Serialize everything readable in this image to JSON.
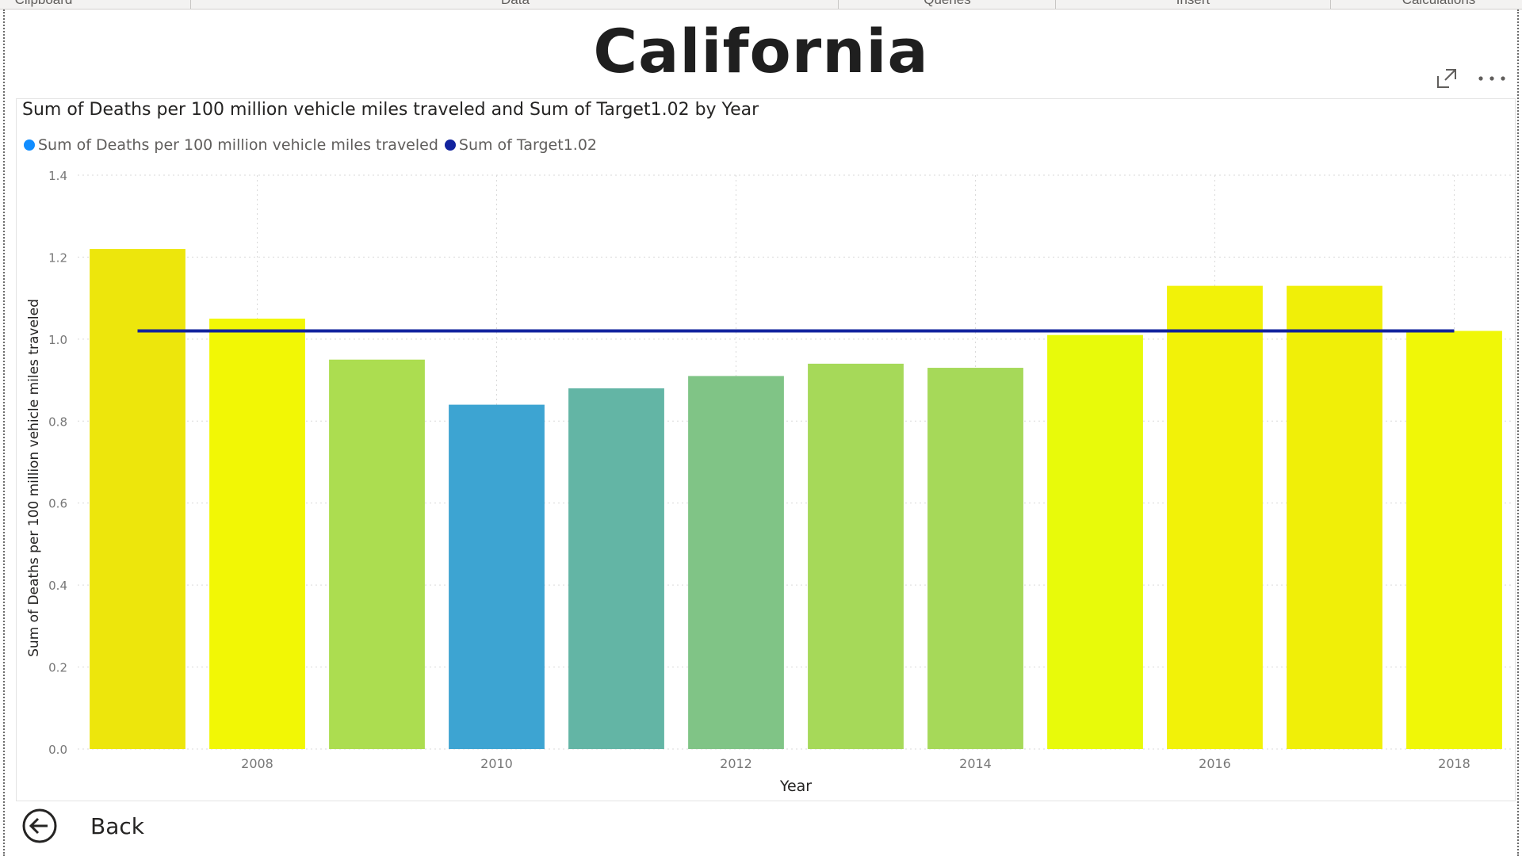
{
  "ribbon": {
    "groups": [
      "Clipboard",
      "Data",
      "Queries",
      "Insert",
      "Calculations"
    ]
  },
  "page": {
    "title": "California",
    "back_label": "Back"
  },
  "visual": {
    "focus_icon": "focus-mode-icon",
    "more_icon": "more-options-icon"
  },
  "chart_data": {
    "type": "bar",
    "title": "Sum of Deaths per 100 million vehicle miles traveled and Sum of Target1.02 by Year",
    "xlabel": "Year",
    "ylabel": "Sum of Deaths per 100 million vehicle miles traveled",
    "ylim": [
      0,
      1.4
    ],
    "yticks": [
      "0.0",
      "0.2",
      "0.4",
      "0.6",
      "0.8",
      "1.0",
      "1.2",
      "1.4"
    ],
    "categories": [
      "2007",
      "2008",
      "2009",
      "2010",
      "2011",
      "2012",
      "2013",
      "2014",
      "2015",
      "2016",
      "2017",
      "2018"
    ],
    "xtick_labels": [
      "",
      "2008",
      "",
      "2010",
      "",
      "2012",
      "",
      "2014",
      "",
      "2016",
      "",
      "2018"
    ],
    "series": [
      {
        "name": "Sum of Deaths per 100 million vehicle miles traveled",
        "type": "bar",
        "legend_color": "#118dff",
        "values": [
          1.22,
          1.05,
          0.95,
          0.84,
          0.88,
          0.91,
          0.94,
          0.93,
          1.01,
          1.13,
          1.13,
          1.02
        ],
        "bar_colors": [
          "#ede60c",
          "#f2f705",
          "#acdd50",
          "#3da4d2",
          "#63b5a5",
          "#80c486",
          "#a6d959",
          "#a6d959",
          "#e8fa0a",
          "#f2f208",
          "#f0ef08",
          "#f0f707"
        ]
      },
      {
        "name": "Sum of Target1.02",
        "type": "line",
        "color": "#12239e",
        "values": [
          1.02,
          1.02,
          1.02,
          1.02,
          1.02,
          1.02,
          1.02,
          1.02,
          1.02,
          1.02,
          1.02,
          1.02
        ]
      }
    ],
    "grid": true,
    "legend_position": "top-left"
  }
}
